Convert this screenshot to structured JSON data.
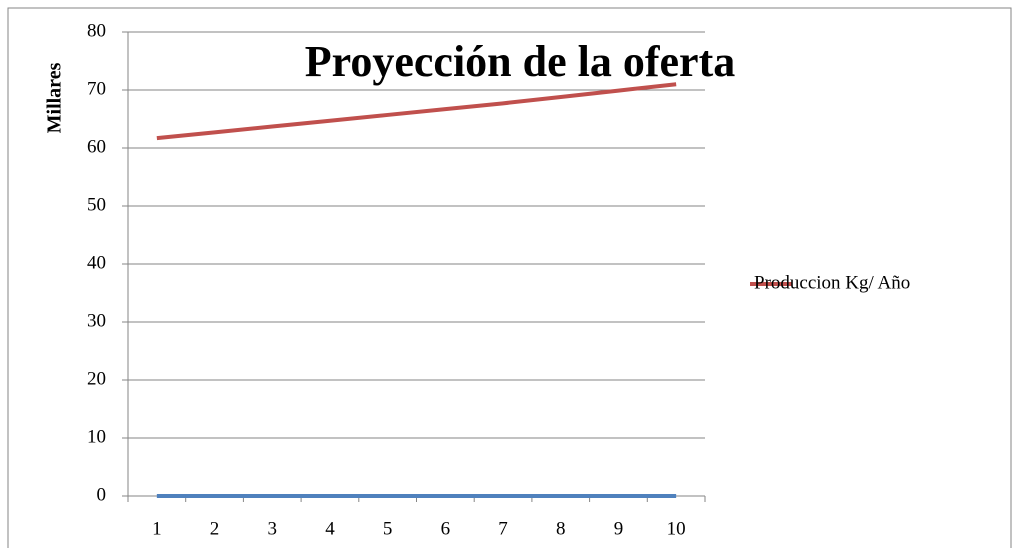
{
  "chart_data": {
    "type": "line",
    "title": "Proyección de la oferta",
    "y_label": "Millares",
    "categories": [
      1,
      2,
      3,
      4,
      5,
      6,
      7,
      8,
      9,
      10
    ],
    "series": [
      {
        "name": "Produccion Kg/ Año",
        "color": "#c0504d",
        "values": [
          61.7,
          62.7,
          63.7,
          64.7,
          65.7,
          66.7,
          67.7,
          68.8,
          69.9,
          71.0
        ]
      },
      {
        "color": "#4f81bd",
        "values": [
          0,
          0,
          0,
          0,
          0,
          0,
          0,
          0,
          0,
          0
        ]
      }
    ],
    "ylim": [
      0,
      80
    ],
    "yticks": [
      0,
      10,
      20,
      30,
      40,
      50,
      60,
      70,
      80
    ],
    "grid": true,
    "legend": "right"
  }
}
